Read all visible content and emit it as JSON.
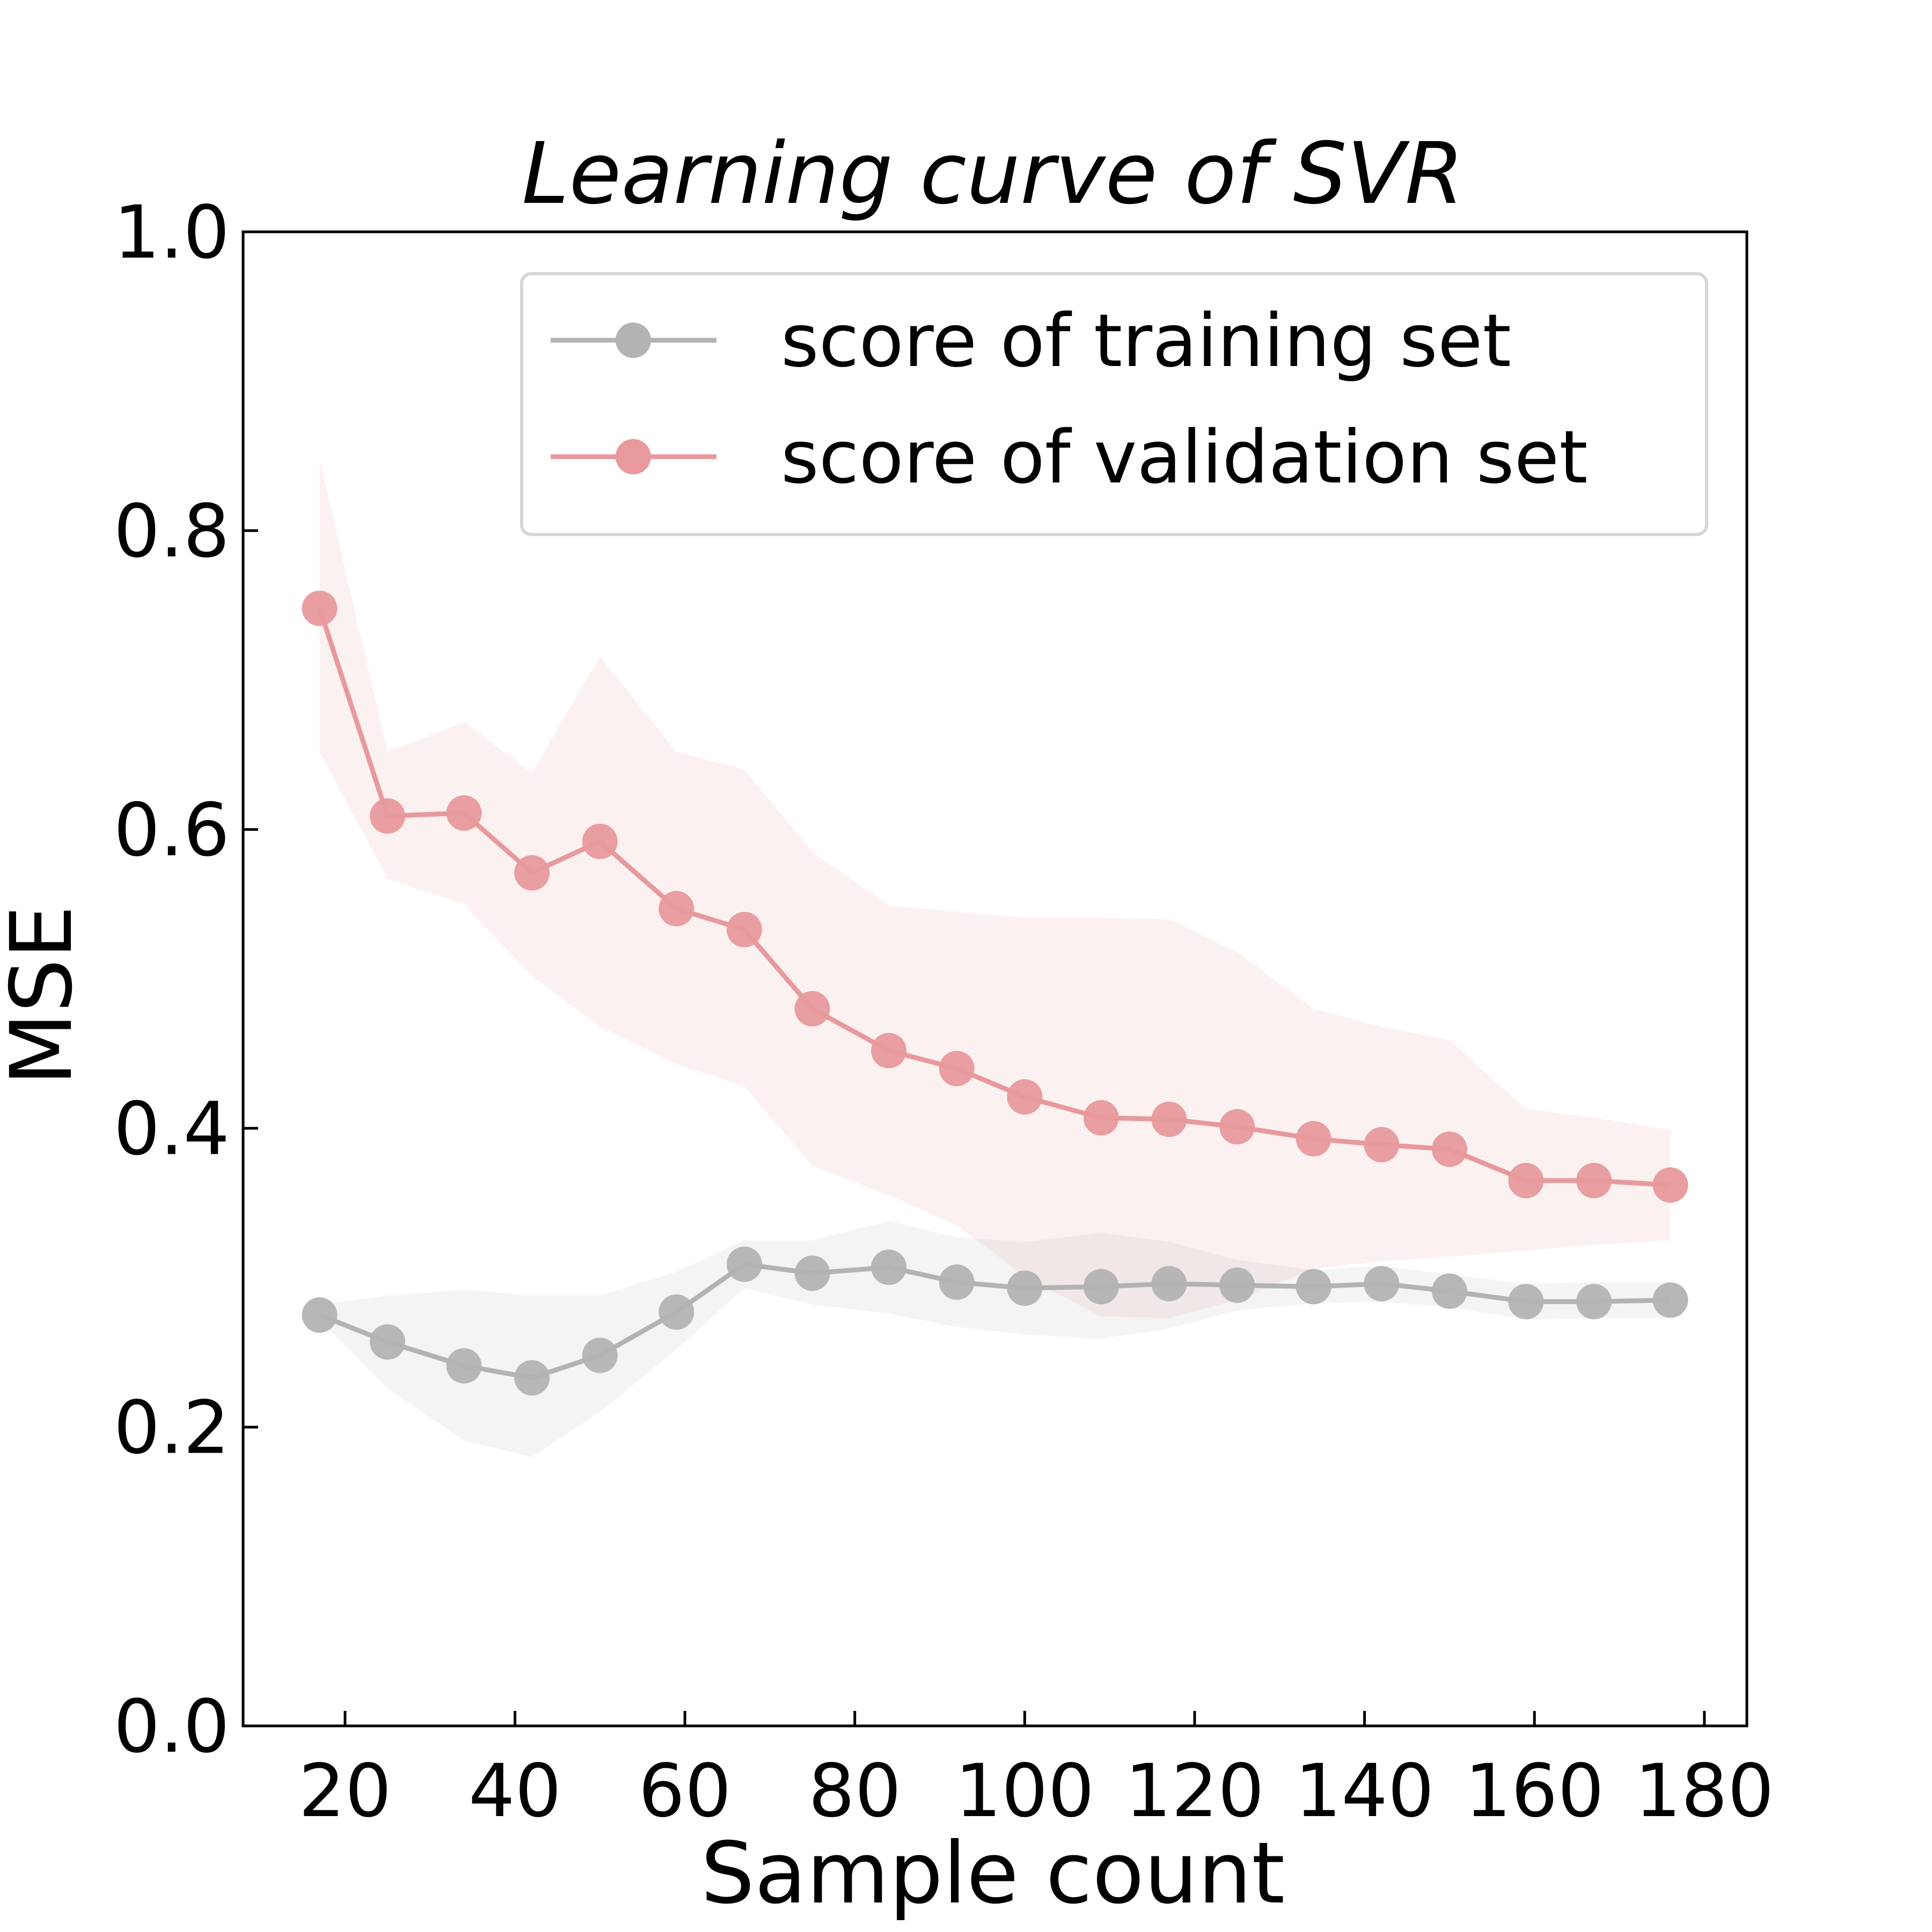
{
  "chart_data": {
    "type": "line",
    "title": "Learning curve of SVR",
    "xlabel": "Sample count",
    "ylabel": "MSE",
    "xlim": [
      8,
      185
    ],
    "ylim": [
      0.0,
      1.0
    ],
    "xticks": [
      20,
      40,
      60,
      80,
      100,
      120,
      140,
      160,
      180
    ],
    "xtick_labels": [
      "20",
      "40",
      "60",
      "80",
      "100",
      "120",
      "140",
      "160",
      "180"
    ],
    "yticks": [
      0.0,
      0.2,
      0.4,
      0.6,
      0.8,
      1.0
    ],
    "ytick_labels": [
      "0.0",
      "0.2",
      "0.4",
      "0.6",
      "0.8",
      "1.0"
    ],
    "grid": false,
    "legend_position": "top-right",
    "x": [
      17,
      25,
      34,
      42,
      50,
      59,
      67,
      75,
      84,
      92,
      100,
      109,
      117,
      125,
      134,
      142,
      150,
      159,
      167,
      176
    ],
    "series": [
      {
        "name": "score of training set",
        "color": "#b3b3b3",
        "values": [
          0.275,
          0.257,
          0.241,
          0.233,
          0.248,
          0.277,
          0.309,
          0.303,
          0.307,
          0.297,
          0.293,
          0.294,
          0.296,
          0.295,
          0.294,
          0.296,
          0.291,
          0.284,
          0.284,
          0.285
        ],
        "band_upper": [
          0.282,
          0.288,
          0.292,
          0.288,
          0.288,
          0.304,
          0.325,
          0.325,
          0.338,
          0.327,
          0.324,
          0.33,
          0.324,
          0.312,
          0.305,
          0.308,
          0.302,
          0.296,
          0.297,
          0.297
        ],
        "band_lower": [
          0.272,
          0.226,
          0.191,
          0.18,
          0.21,
          0.252,
          0.293,
          0.282,
          0.276,
          0.267,
          0.262,
          0.259,
          0.266,
          0.278,
          0.283,
          0.284,
          0.28,
          0.272,
          0.273,
          0.273
        ]
      },
      {
        "name": "score of validation set",
        "color": "#e8999c",
        "values": [
          0.748,
          0.609,
          0.611,
          0.571,
          0.592,
          0.547,
          0.533,
          0.48,
          0.452,
          0.44,
          0.421,
          0.407,
          0.406,
          0.401,
          0.393,
          0.389,
          0.386,
          0.365,
          0.365,
          0.362
        ],
        "band_upper": [
          0.848,
          0.652,
          0.672,
          0.638,
          0.716,
          0.652,
          0.64,
          0.585,
          0.549,
          0.545,
          0.541,
          0.541,
          0.54,
          0.518,
          0.48,
          0.468,
          0.459,
          0.413,
          0.407,
          0.399
        ],
        "band_lower": [
          0.652,
          0.567,
          0.55,
          0.502,
          0.468,
          0.443,
          0.428,
          0.375,
          0.355,
          0.335,
          0.301,
          0.274,
          0.273,
          0.285,
          0.306,
          0.311,
          0.314,
          0.318,
          0.322,
          0.325
        ]
      }
    ]
  }
}
